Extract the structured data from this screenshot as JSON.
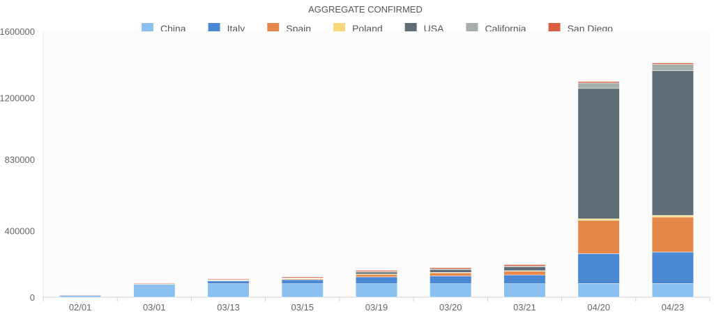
{
  "chart_data": {
    "type": "bar",
    "stacked": true,
    "title": "AGGREGATE CONFIRMED",
    "legend_position": "top",
    "categories": [
      "02/01",
      "03/01",
      "03/13",
      "03/15",
      "03/19",
      "03/20",
      "03/21",
      "04/20",
      "04/23"
    ],
    "y_ticks": [
      "0",
      "400000",
      "830000",
      "1200000",
      "1600000"
    ],
    "ylim": [
      0,
      1600000
    ],
    "grid": false,
    "series": [
      {
        "name": "China",
        "color": "#8cc1ef",
        "values": [
          11000,
          79000,
          81000,
          81000,
          81000,
          81000,
          81000,
          82000,
          82000
        ]
      },
      {
        "name": "Italy",
        "color": "#4a88d3",
        "values": [
          0,
          1100,
          17000,
          24000,
          41000,
          47000,
          53000,
          180000,
          190000
        ]
      },
      {
        "name": "Spain",
        "color": "#e6884a",
        "values": [
          0,
          80,
          5200,
          7800,
          17000,
          21000,
          25000,
          200000,
          210000
        ]
      },
      {
        "name": "Poland",
        "color": "#f8d878",
        "values": [
          0,
          0,
          50,
          100,
          300,
          400,
          500,
          9800,
          10500
        ]
      },
      {
        "name": "USA",
        "color": "#5f6e76",
        "values": [
          0,
          80,
          2200,
          3500,
          14000,
          19000,
          26000,
          785000,
          870000
        ]
      },
      {
        "name": "California",
        "color": "#a6afac",
        "values": [
          0,
          30,
          250,
          400,
          1100,
          1300,
          1500,
          33000,
          39000
        ]
      },
      {
        "name": "San Diego",
        "color": "#d96040",
        "values": [
          3000,
          4000,
          5000,
          6000,
          7000,
          8000,
          9000,
          8000,
          8000
        ]
      }
    ]
  }
}
